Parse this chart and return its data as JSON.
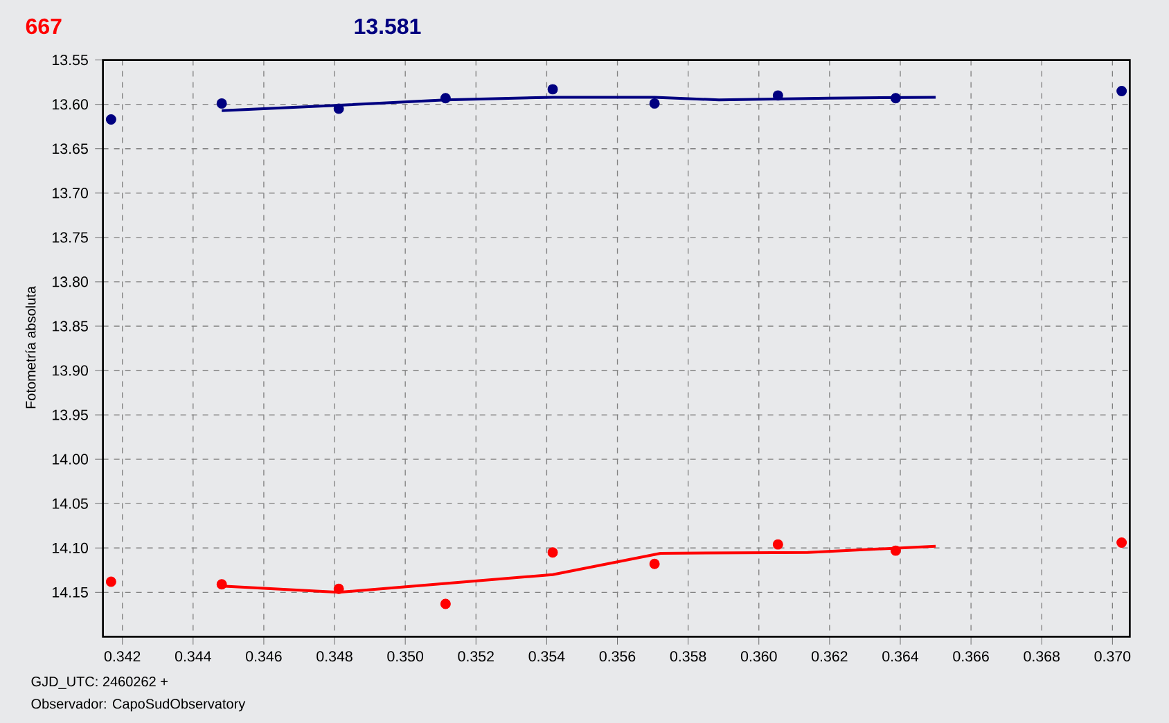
{
  "chart_data": {
    "type": "scatter",
    "xlabel": "GJD_UTC: 2460262 +",
    "ylabel": "Fotometría absoluta",
    "annotations": [
      "667",
      "13.581",
      "Observador: CapoSudObservatory"
    ],
    "xlim": [
      0.34145,
      0.37049
    ],
    "ylim": [
      14.2,
      13.55
    ],
    "xticks": [
      0.342,
      0.344,
      0.346,
      0.348,
      {
        "value": 0.35,
        "label": "0.350"
      },
      0.352,
      0.354,
      0.356,
      0.358,
      {
        "value": 0.36,
        "label": "0.360"
      },
      0.362,
      0.364,
      0.366,
      0.368,
      {
        "value": 0.37,
        "label": "0.370"
      }
    ],
    "yticks": [
      13.55,
      {
        "value": 13.6,
        "label": "13.60"
      },
      13.65,
      {
        "value": 13.7,
        "label": "13.70"
      },
      13.75,
      {
        "value": 13.8,
        "label": "13.80"
      },
      13.85,
      {
        "value": 13.9,
        "label": "13.90"
      },
      13.95,
      {
        "value": 14.0,
        "label": "14.00"
      },
      14.05,
      {
        "value": 14.1,
        "label": "14.10"
      },
      14.15
    ],
    "grid": true,
    "marker": "circle",
    "series": [
      {
        "color": "#000080",
        "x": [
          0.34168,
          0.34481,
          0.34812,
          0.35114,
          0.35417,
          0.35705,
          0.36054,
          0.36387,
          0.37026
        ],
        "values": [
          13.617,
          13.599,
          13.605,
          13.593,
          13.583,
          13.599,
          13.59,
          13.593,
          13.585
        ]
      },
      {
        "type": "line",
        "marker": "none",
        "color": "#000080",
        "x": [
          0.34481,
          0.34812,
          0.35114,
          0.35417,
          0.35705,
          0.35887,
          0.36198,
          0.365
        ],
        "values": [
          13.607,
          13.601,
          13.595,
          13.592,
          13.592,
          13.595,
          13.593,
          13.592
        ]
      },
      {
        "color": "#ff0000",
        "x": [
          0.34168,
          0.34481,
          0.34812,
          0.35114,
          0.35417,
          0.35705,
          0.36054,
          0.36387,
          0.37026
        ],
        "values": [
          14.138,
          14.141,
          14.146,
          14.163,
          14.105,
          14.118,
          14.096,
          14.103,
          14.094
        ]
      },
      {
        "type": "line",
        "marker": "none",
        "color": "#ff0000",
        "x": [
          0.34481,
          0.34812,
          0.35114,
          0.35417,
          0.35722,
          0.36138,
          0.365
        ],
        "values": [
          14.143,
          14.15,
          14.14,
          14.13,
          14.106,
          14.105,
          14.098
        ]
      }
    ]
  }
}
